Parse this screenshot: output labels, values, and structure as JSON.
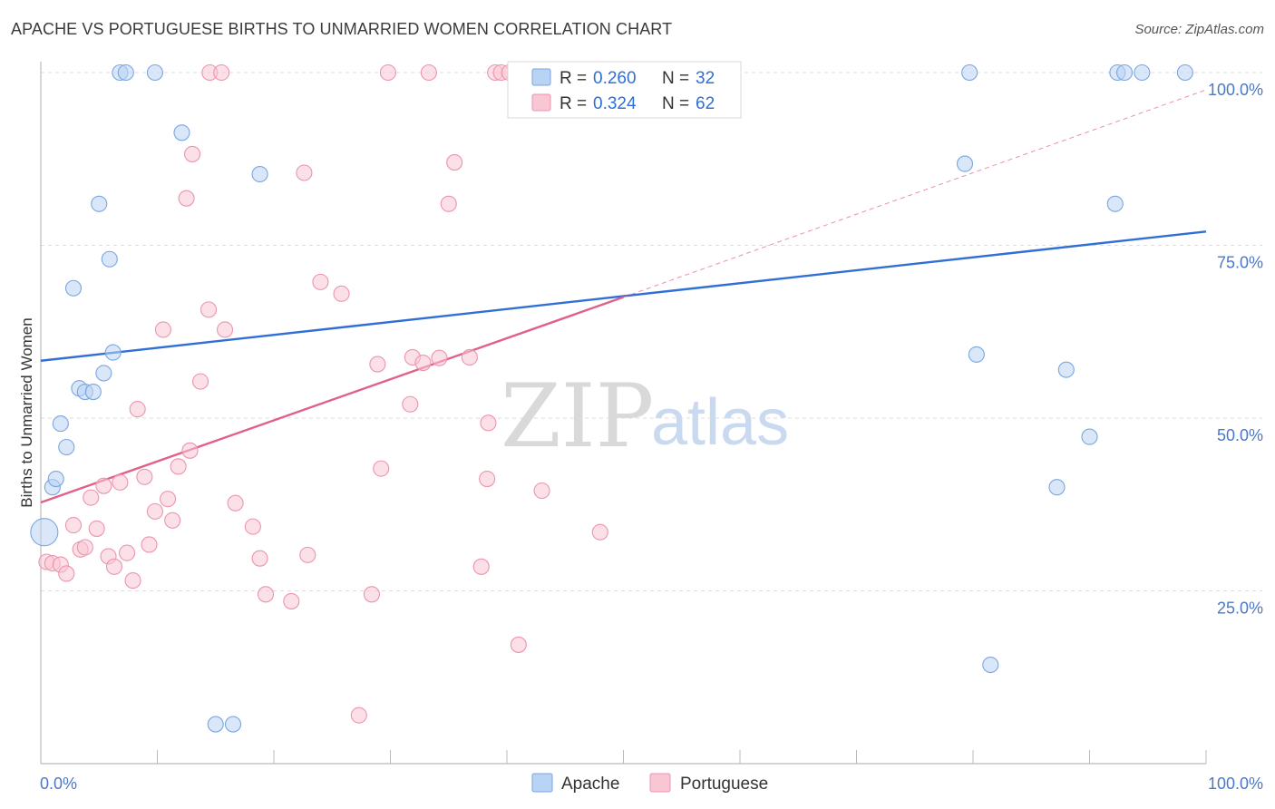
{
  "header": {
    "title": "APACHE VS PORTUGUESE BIRTHS TO UNMARRIED WOMEN CORRELATION CHART",
    "source": "Source: ZipAtlas.com"
  },
  "watermark": {
    "zip": "ZIP",
    "atlas": "atlas"
  },
  "legend": {
    "items": [
      {
        "r_label": "R =",
        "r_value": "0.260",
        "n_label": "N =",
        "n_value": "32",
        "fill": "#b9d3f4",
        "stroke": "#7aa6e0"
      },
      {
        "r_label": "R =",
        "r_value": "0.324",
        "n_label": "N =",
        "n_value": "62",
        "fill": "#f9c6d4",
        "stroke": "#ec94ae"
      }
    ]
  },
  "bottom_legend": [
    "Apache",
    "Portuguese"
  ],
  "chart_data": {
    "type": "scatter",
    "title": "APACHE VS PORTUGUESE BIRTHS TO UNMARRIED WOMEN CORRELATION CHART",
    "xlabel": "",
    "ylabel": "Births to Unmarried Women",
    "xlim": [
      0,
      100
    ],
    "ylim": [
      0,
      102
    ],
    "x_tick_labels": [
      {
        "value": 0,
        "label": "0.0%"
      },
      {
        "value": 100,
        "label": "100.0%"
      }
    ],
    "y_tick_labels": [
      {
        "value": 25,
        "label": "25.0%"
      },
      {
        "value": 50,
        "label": "50.0%"
      },
      {
        "value": 75,
        "label": "75.0%"
      },
      {
        "value": 100,
        "label": "100.0%"
      }
    ],
    "grid": true,
    "series": [
      {
        "name": "Apache",
        "color": "#7aa6e0",
        "fill": "#b9d3f4",
        "trend_color": "#2f6fd6",
        "trend": {
          "x0": 0,
          "y0": 58.3,
          "x1": 100,
          "y1": 77.0
        },
        "points": [
          [
            0.3,
            33.5
          ],
          [
            1.0,
            40.0
          ],
          [
            1.3,
            41.2
          ],
          [
            1.7,
            49.2
          ],
          [
            2.2,
            45.8
          ],
          [
            2.8,
            68.8
          ],
          [
            3.3,
            54.3
          ],
          [
            3.8,
            53.8
          ],
          [
            4.5,
            53.8
          ],
          [
            5.0,
            81.0
          ],
          [
            5.4,
            56.5
          ],
          [
            5.9,
            73.0
          ],
          [
            6.2,
            59.5
          ],
          [
            6.8,
            100.0
          ],
          [
            7.3,
            100.0
          ],
          [
            9.8,
            100.0
          ],
          [
            12.1,
            91.3
          ],
          [
            15.0,
            5.7
          ],
          [
            16.5,
            5.7
          ],
          [
            18.8,
            85.3
          ],
          [
            79.3,
            86.8
          ],
          [
            79.7,
            100.0
          ],
          [
            80.3,
            59.2
          ],
          [
            81.5,
            14.3
          ],
          [
            87.2,
            40.0
          ],
          [
            88.0,
            57.0
          ],
          [
            90.0,
            47.3
          ],
          [
            92.2,
            81.0
          ],
          [
            92.4,
            100.0
          ],
          [
            93.0,
            100.0
          ],
          [
            94.5,
            100.0
          ],
          [
            98.2,
            100.0
          ]
        ]
      },
      {
        "name": "Portuguese",
        "color": "#ec94ae",
        "fill": "#f9c6d4",
        "trend_color": "#e0608a",
        "trend": {
          "x0": 0,
          "y0": 37.8,
          "x1": 50,
          "y1": 67.5
        },
        "trend_ext": {
          "x0": 50,
          "y0": 67.5,
          "x1": 100,
          "y1": 97.5
        },
        "points": [
          [
            0.5,
            29.2
          ],
          [
            1.0,
            29.0
          ],
          [
            1.7,
            28.8
          ],
          [
            2.2,
            27.5
          ],
          [
            2.8,
            34.5
          ],
          [
            3.4,
            31.0
          ],
          [
            3.8,
            31.3
          ],
          [
            4.3,
            38.5
          ],
          [
            4.8,
            34.0
          ],
          [
            5.4,
            40.2
          ],
          [
            5.8,
            30.0
          ],
          [
            6.3,
            28.5
          ],
          [
            6.8,
            40.7
          ],
          [
            7.4,
            30.5
          ],
          [
            7.9,
            26.5
          ],
          [
            8.3,
            51.3
          ],
          [
            8.9,
            41.5
          ],
          [
            9.3,
            31.7
          ],
          [
            9.8,
            36.5
          ],
          [
            10.5,
            62.8
          ],
          [
            10.9,
            38.3
          ],
          [
            11.3,
            35.2
          ],
          [
            11.8,
            43.0
          ],
          [
            12.8,
            45.3
          ],
          [
            13.0,
            88.2
          ],
          [
            12.5,
            81.8
          ],
          [
            13.7,
            55.3
          ],
          [
            14.4,
            65.7
          ],
          [
            14.5,
            100.0
          ],
          [
            15.5,
            100.0
          ],
          [
            15.8,
            62.8
          ],
          [
            16.7,
            37.7
          ],
          [
            18.2,
            34.3
          ],
          [
            18.8,
            29.7
          ],
          [
            19.3,
            24.5
          ],
          [
            21.5,
            23.5
          ],
          [
            22.6,
            85.5
          ],
          [
            22.9,
            30.2
          ],
          [
            24.0,
            69.7
          ],
          [
            25.8,
            68.0
          ],
          [
            27.3,
            7.0
          ],
          [
            28.4,
            24.5
          ],
          [
            28.9,
            57.8
          ],
          [
            29.2,
            42.7
          ],
          [
            29.8,
            100.0
          ],
          [
            31.7,
            52.0
          ],
          [
            31.9,
            58.8
          ],
          [
            32.8,
            58.0
          ],
          [
            33.3,
            100.0
          ],
          [
            34.2,
            58.7
          ],
          [
            35.0,
            81.0
          ],
          [
            35.5,
            87.0
          ],
          [
            36.8,
            58.8
          ],
          [
            37.8,
            28.5
          ],
          [
            38.3,
            41.2
          ],
          [
            38.4,
            49.3
          ],
          [
            39.0,
            100.0
          ],
          [
            39.5,
            100.0
          ],
          [
            40.2,
            100.0
          ],
          [
            41.0,
            17.2
          ],
          [
            43.0,
            39.5
          ],
          [
            48.0,
            33.5
          ]
        ]
      }
    ]
  }
}
